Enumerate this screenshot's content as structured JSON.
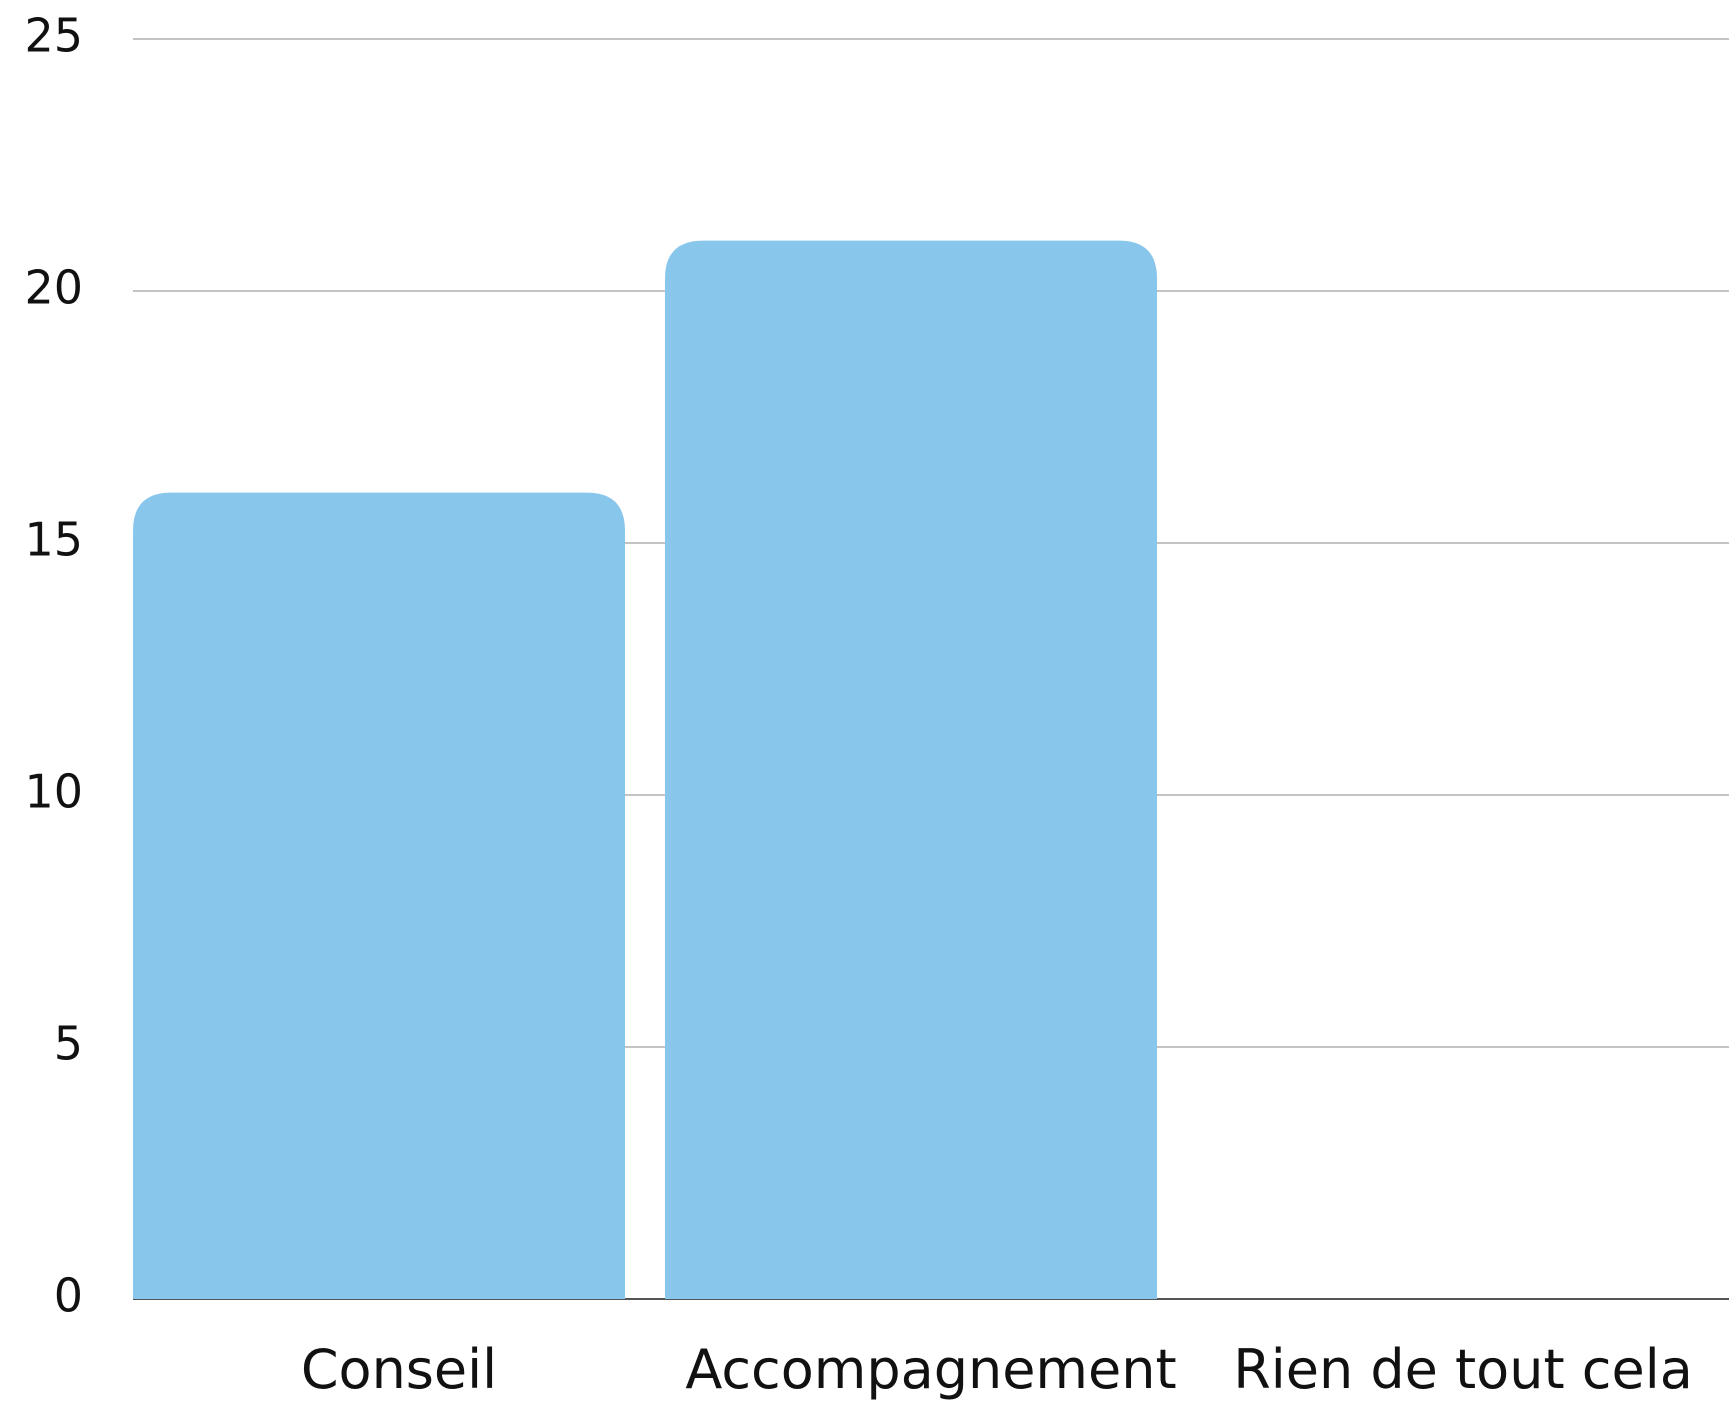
{
  "chart_data": {
    "type": "bar",
    "categories": [
      "Conseil",
      "Accompagnement",
      "Rien de tout cela"
    ],
    "values": [
      16,
      21,
      0
    ],
    "color": "#88c6ec",
    "ylim": [
      0,
      25
    ],
    "yticks": [
      0,
      5,
      10,
      15,
      20,
      25
    ],
    "grid": true
  }
}
